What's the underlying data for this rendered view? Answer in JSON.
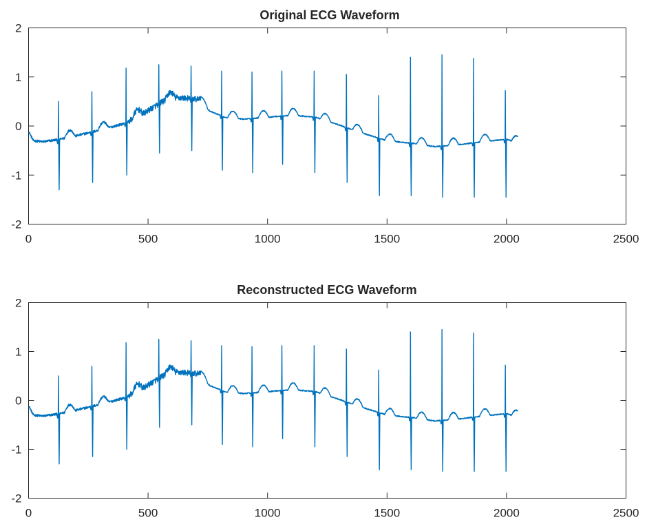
{
  "figure": {
    "background": "#ffffff",
    "axis_color": "#262626"
  },
  "chart_data": [
    {
      "type": "line",
      "title": "Original ECG Waveform",
      "xlabel": "",
      "ylabel": "",
      "xlim": [
        0,
        2500
      ],
      "ylim": [
        -2,
        2
      ],
      "xticks": [
        0,
        500,
        1000,
        1500,
        2000,
        2500
      ],
      "yticks": [
        -2,
        -1,
        0,
        1,
        2
      ],
      "xtick_labels": [
        "0",
        "500",
        "1000",
        "1500",
        "2000",
        "2500"
      ],
      "ytick_labels": [
        "-2",
        "-1",
        "0",
        "1",
        "2"
      ],
      "grid": false,
      "legend": "none",
      "series": [
        {
          "color": "#0072BD",
          "x_start": 1,
          "x_end": 2048,
          "samples": 2048,
          "baseline": [
            [
              0,
              -0.1
            ],
            [
              20,
              -0.3
            ],
            [
              60,
              -0.32
            ],
            [
              120,
              -0.28
            ],
            [
              200,
              -0.2
            ],
            [
              300,
              -0.08
            ],
            [
              400,
              0.05
            ],
            [
              480,
              0.25
            ],
            [
              560,
              0.5
            ],
            [
              620,
              0.58
            ],
            [
              700,
              0.55
            ],
            [
              760,
              0.3
            ],
            [
              820,
              0.18
            ],
            [
              900,
              0.14
            ],
            [
              1000,
              0.18
            ],
            [
              1100,
              0.22
            ],
            [
              1200,
              0.18
            ],
            [
              1300,
              0.02
            ],
            [
              1400,
              -0.15
            ],
            [
              1500,
              -0.3
            ],
            [
              1600,
              -0.35
            ],
            [
              1700,
              -0.42
            ],
            [
              1800,
              -0.38
            ],
            [
              1900,
              -0.32
            ],
            [
              2000,
              -0.27
            ],
            [
              2048,
              -0.35
            ]
          ],
          "r_peaks": [
            {
              "x": 125,
              "high": 0.5,
              "low": -1.3
            },
            {
              "x": 265,
              "high": 0.7,
              "low": -1.15
            },
            {
              "x": 408,
              "high": 1.18,
              "low": -1.0
            },
            {
              "x": 545,
              "high": 1.25,
              "low": -0.55
            },
            {
              "x": 680,
              "high": 1.22,
              "low": -0.5
            },
            {
              "x": 808,
              "high": 1.12,
              "low": -0.9
            },
            {
              "x": 935,
              "high": 1.1,
              "low": -0.95
            },
            {
              "x": 1060,
              "high": 1.12,
              "low": -0.78
            },
            {
              "x": 1195,
              "high": 1.12,
              "low": -0.95
            },
            {
              "x": 1330,
              "high": 1.05,
              "low": -1.15
            },
            {
              "x": 1465,
              "high": 0.62,
              "low": -1.42
            },
            {
              "x": 1598,
              "high": 1.4,
              "low": -1.42
            },
            {
              "x": 1730,
              "high": 1.45,
              "low": -1.45
            },
            {
              "x": 1862,
              "high": 1.38,
              "low": -1.45
            },
            {
              "x": 1995,
              "high": 0.72,
              "low": -1.45
            }
          ],
          "noise_regions": [
            [
              420,
              720,
              0.06
            ],
            [
              0,
              420,
              0.025
            ],
            [
              720,
              2048,
              0.012
            ]
          ],
          "t_wave_amplitude": 0.14
        }
      ]
    },
    {
      "type": "line",
      "title": "Reconstructed ECG Waveform",
      "xlabel": "",
      "ylabel": "",
      "xlim": [
        0,
        2500
      ],
      "ylim": [
        -2,
        2
      ],
      "xticks": [
        0,
        500,
        1000,
        1500,
        2000,
        2500
      ],
      "yticks": [
        -2,
        -1,
        0,
        1,
        2
      ],
      "xtick_labels": [
        "0",
        "500",
        "1000",
        "1500",
        "2000",
        "2500"
      ],
      "ytick_labels": [
        "-2",
        "-1",
        "0",
        "1",
        "2"
      ],
      "grid": false,
      "legend": "none",
      "series": [
        {
          "color": "#0072BD",
          "x_start": 1,
          "x_end": 2048,
          "samples": 2048,
          "baseline": [
            [
              0,
              -0.1
            ],
            [
              20,
              -0.3
            ],
            [
              60,
              -0.32
            ],
            [
              120,
              -0.28
            ],
            [
              200,
              -0.2
            ],
            [
              300,
              -0.08
            ],
            [
              400,
              0.05
            ],
            [
              480,
              0.25
            ],
            [
              560,
              0.5
            ],
            [
              620,
              0.58
            ],
            [
              700,
              0.55
            ],
            [
              760,
              0.3
            ],
            [
              820,
              0.18
            ],
            [
              900,
              0.14
            ],
            [
              1000,
              0.18
            ],
            [
              1100,
              0.22
            ],
            [
              1200,
              0.18
            ],
            [
              1300,
              0.02
            ],
            [
              1400,
              -0.15
            ],
            [
              1500,
              -0.3
            ],
            [
              1600,
              -0.35
            ],
            [
              1700,
              -0.42
            ],
            [
              1800,
              -0.38
            ],
            [
              1900,
              -0.32
            ],
            [
              2000,
              -0.27
            ],
            [
              2048,
              -0.35
            ]
          ],
          "r_peaks": [
            {
              "x": 125,
              "high": 0.5,
              "low": -1.3
            },
            {
              "x": 265,
              "high": 0.7,
              "low": -1.15
            },
            {
              "x": 408,
              "high": 1.18,
              "low": -1.0
            },
            {
              "x": 545,
              "high": 1.25,
              "low": -0.55
            },
            {
              "x": 680,
              "high": 1.22,
              "low": -0.5
            },
            {
              "x": 808,
              "high": 1.12,
              "low": -0.9
            },
            {
              "x": 935,
              "high": 1.1,
              "low": -0.95
            },
            {
              "x": 1060,
              "high": 1.12,
              "low": -0.78
            },
            {
              "x": 1195,
              "high": 1.12,
              "low": -0.95
            },
            {
              "x": 1330,
              "high": 1.05,
              "low": -1.15
            },
            {
              "x": 1465,
              "high": 0.62,
              "low": -1.42
            },
            {
              "x": 1598,
              "high": 1.4,
              "low": -1.42
            },
            {
              "x": 1730,
              "high": 1.45,
              "low": -1.45
            },
            {
              "x": 1862,
              "high": 1.38,
              "low": -1.45
            },
            {
              "x": 1995,
              "high": 0.72,
              "low": -1.45
            }
          ],
          "noise_regions": [
            [
              420,
              720,
              0.06
            ],
            [
              0,
              420,
              0.025
            ],
            [
              720,
              2048,
              0.012
            ]
          ],
          "t_wave_amplitude": 0.14
        }
      ]
    }
  ]
}
